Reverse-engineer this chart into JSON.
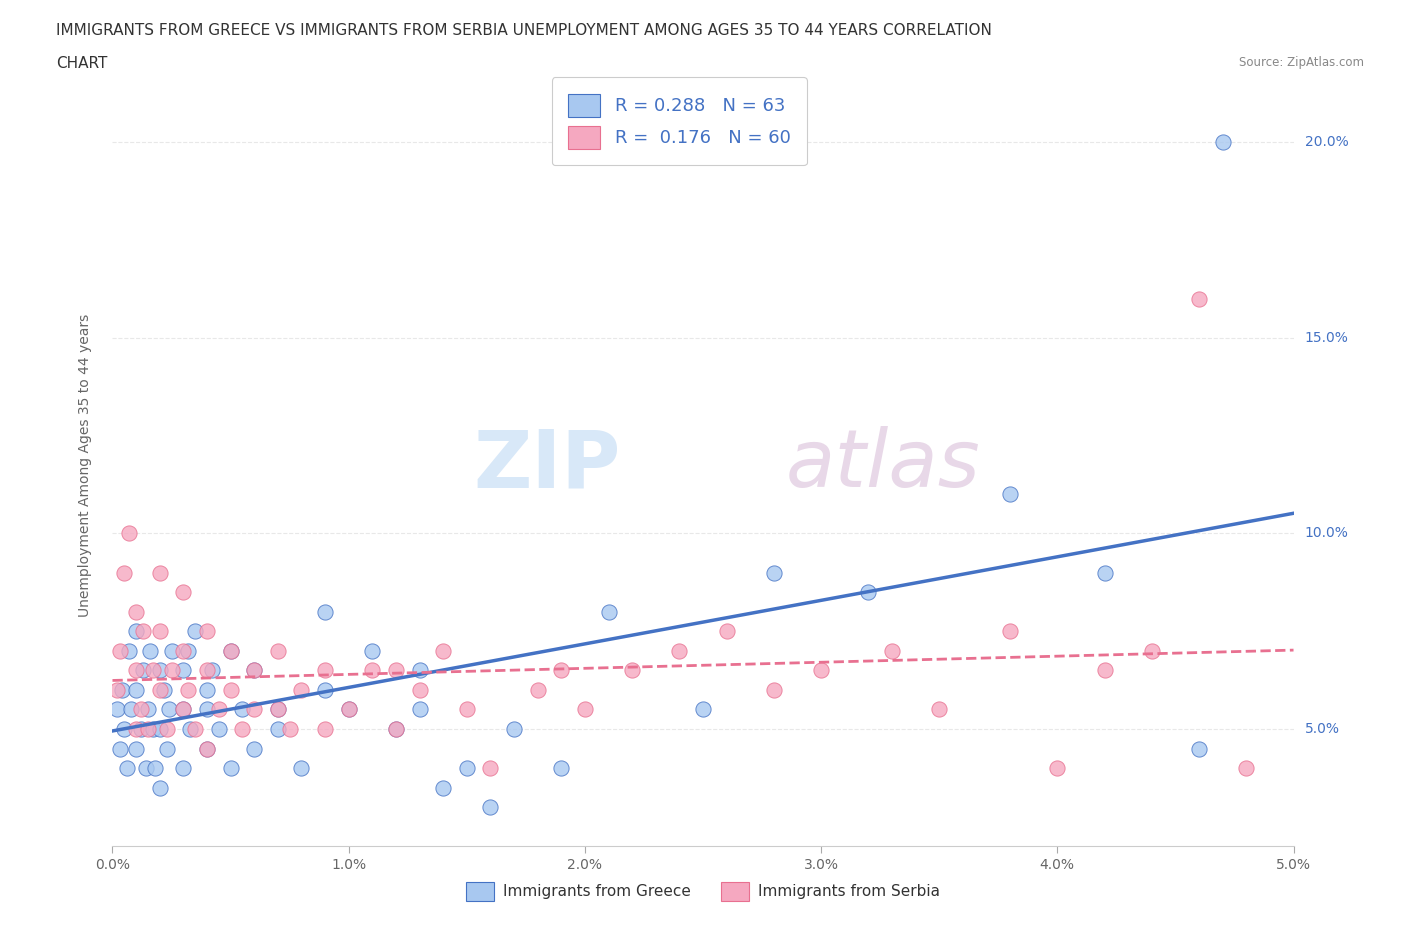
{
  "title_line1": "IMMIGRANTS FROM GREECE VS IMMIGRANTS FROM SERBIA UNEMPLOYMENT AMONG AGES 35 TO 44 YEARS CORRELATION",
  "title_line2": "CHART",
  "source": "Source: ZipAtlas.com",
  "ylabel": "Unemployment Among Ages 35 to 44 years",
  "xlim": [
    0.0,
    0.05
  ],
  "ylim": [
    0.02,
    0.215
  ],
  "xticks": [
    0.0,
    0.01,
    0.02,
    0.03,
    0.04,
    0.05
  ],
  "xtick_labels": [
    "0.0%",
    "1.0%",
    "2.0%",
    "3.0%",
    "4.0%",
    "5.0%"
  ],
  "yticks": [
    0.05,
    0.1,
    0.15,
    0.2
  ],
  "ytick_labels": [
    "5.0%",
    "10.0%",
    "15.0%",
    "20.0%"
  ],
  "legend_R_greece": "0.288",
  "legend_N_greece": "63",
  "legend_R_serbia": "0.176",
  "legend_N_serbia": "60",
  "color_greece": "#A8C8F0",
  "color_serbia": "#F5A8C0",
  "line_color_greece": "#4472C4",
  "line_color_serbia": "#E87090",
  "watermark_zip": "ZIP",
  "watermark_atlas": "atlas",
  "background_color": "#FFFFFF",
  "greece_x": [
    0.0002,
    0.0003,
    0.0004,
    0.0005,
    0.0006,
    0.0007,
    0.0008,
    0.001,
    0.001,
    0.001,
    0.0012,
    0.0013,
    0.0014,
    0.0015,
    0.0016,
    0.0017,
    0.0018,
    0.002,
    0.002,
    0.002,
    0.0022,
    0.0023,
    0.0024,
    0.0025,
    0.003,
    0.003,
    0.003,
    0.0032,
    0.0033,
    0.0035,
    0.004,
    0.004,
    0.004,
    0.0042,
    0.0045,
    0.005,
    0.005,
    0.0055,
    0.006,
    0.006,
    0.007,
    0.007,
    0.008,
    0.009,
    0.009,
    0.01,
    0.011,
    0.012,
    0.013,
    0.013,
    0.014,
    0.015,
    0.016,
    0.017,
    0.019,
    0.021,
    0.025,
    0.028,
    0.032,
    0.038,
    0.042,
    0.046,
    0.047
  ],
  "greece_y": [
    0.055,
    0.045,
    0.06,
    0.05,
    0.04,
    0.07,
    0.055,
    0.045,
    0.06,
    0.075,
    0.05,
    0.065,
    0.04,
    0.055,
    0.07,
    0.05,
    0.04,
    0.05,
    0.065,
    0.035,
    0.06,
    0.045,
    0.055,
    0.07,
    0.055,
    0.065,
    0.04,
    0.07,
    0.05,
    0.075,
    0.045,
    0.06,
    0.055,
    0.065,
    0.05,
    0.04,
    0.07,
    0.055,
    0.045,
    0.065,
    0.05,
    0.055,
    0.04,
    0.06,
    0.08,
    0.055,
    0.07,
    0.05,
    0.065,
    0.055,
    0.035,
    0.04,
    0.03,
    0.05,
    0.04,
    0.08,
    0.055,
    0.09,
    0.085,
    0.11,
    0.09,
    0.045,
    0.2
  ],
  "serbia_x": [
    0.0002,
    0.0003,
    0.0005,
    0.0007,
    0.001,
    0.001,
    0.001,
    0.0012,
    0.0013,
    0.0015,
    0.0017,
    0.002,
    0.002,
    0.002,
    0.0023,
    0.0025,
    0.003,
    0.003,
    0.003,
    0.0032,
    0.0035,
    0.004,
    0.004,
    0.004,
    0.0045,
    0.005,
    0.005,
    0.0055,
    0.006,
    0.006,
    0.007,
    0.007,
    0.0075,
    0.008,
    0.009,
    0.009,
    0.01,
    0.011,
    0.012,
    0.012,
    0.013,
    0.014,
    0.015,
    0.016,
    0.018,
    0.019,
    0.02,
    0.022,
    0.024,
    0.026,
    0.028,
    0.03,
    0.033,
    0.035,
    0.038,
    0.04,
    0.042,
    0.044,
    0.046,
    0.048
  ],
  "serbia_y": [
    0.06,
    0.07,
    0.09,
    0.1,
    0.05,
    0.065,
    0.08,
    0.055,
    0.075,
    0.05,
    0.065,
    0.06,
    0.075,
    0.09,
    0.05,
    0.065,
    0.055,
    0.07,
    0.085,
    0.06,
    0.05,
    0.065,
    0.075,
    0.045,
    0.055,
    0.06,
    0.07,
    0.05,
    0.055,
    0.065,
    0.055,
    0.07,
    0.05,
    0.06,
    0.05,
    0.065,
    0.055,
    0.065,
    0.05,
    0.065,
    0.06,
    0.07,
    0.055,
    0.04,
    0.06,
    0.065,
    0.055,
    0.065,
    0.07,
    0.075,
    0.06,
    0.065,
    0.07,
    0.055,
    0.075,
    0.04,
    0.065,
    0.07,
    0.16,
    0.04
  ],
  "grid_color": "#E8E8E8",
  "title_fontsize": 11,
  "axis_label_fontsize": 10,
  "tick_fontsize": 10
}
